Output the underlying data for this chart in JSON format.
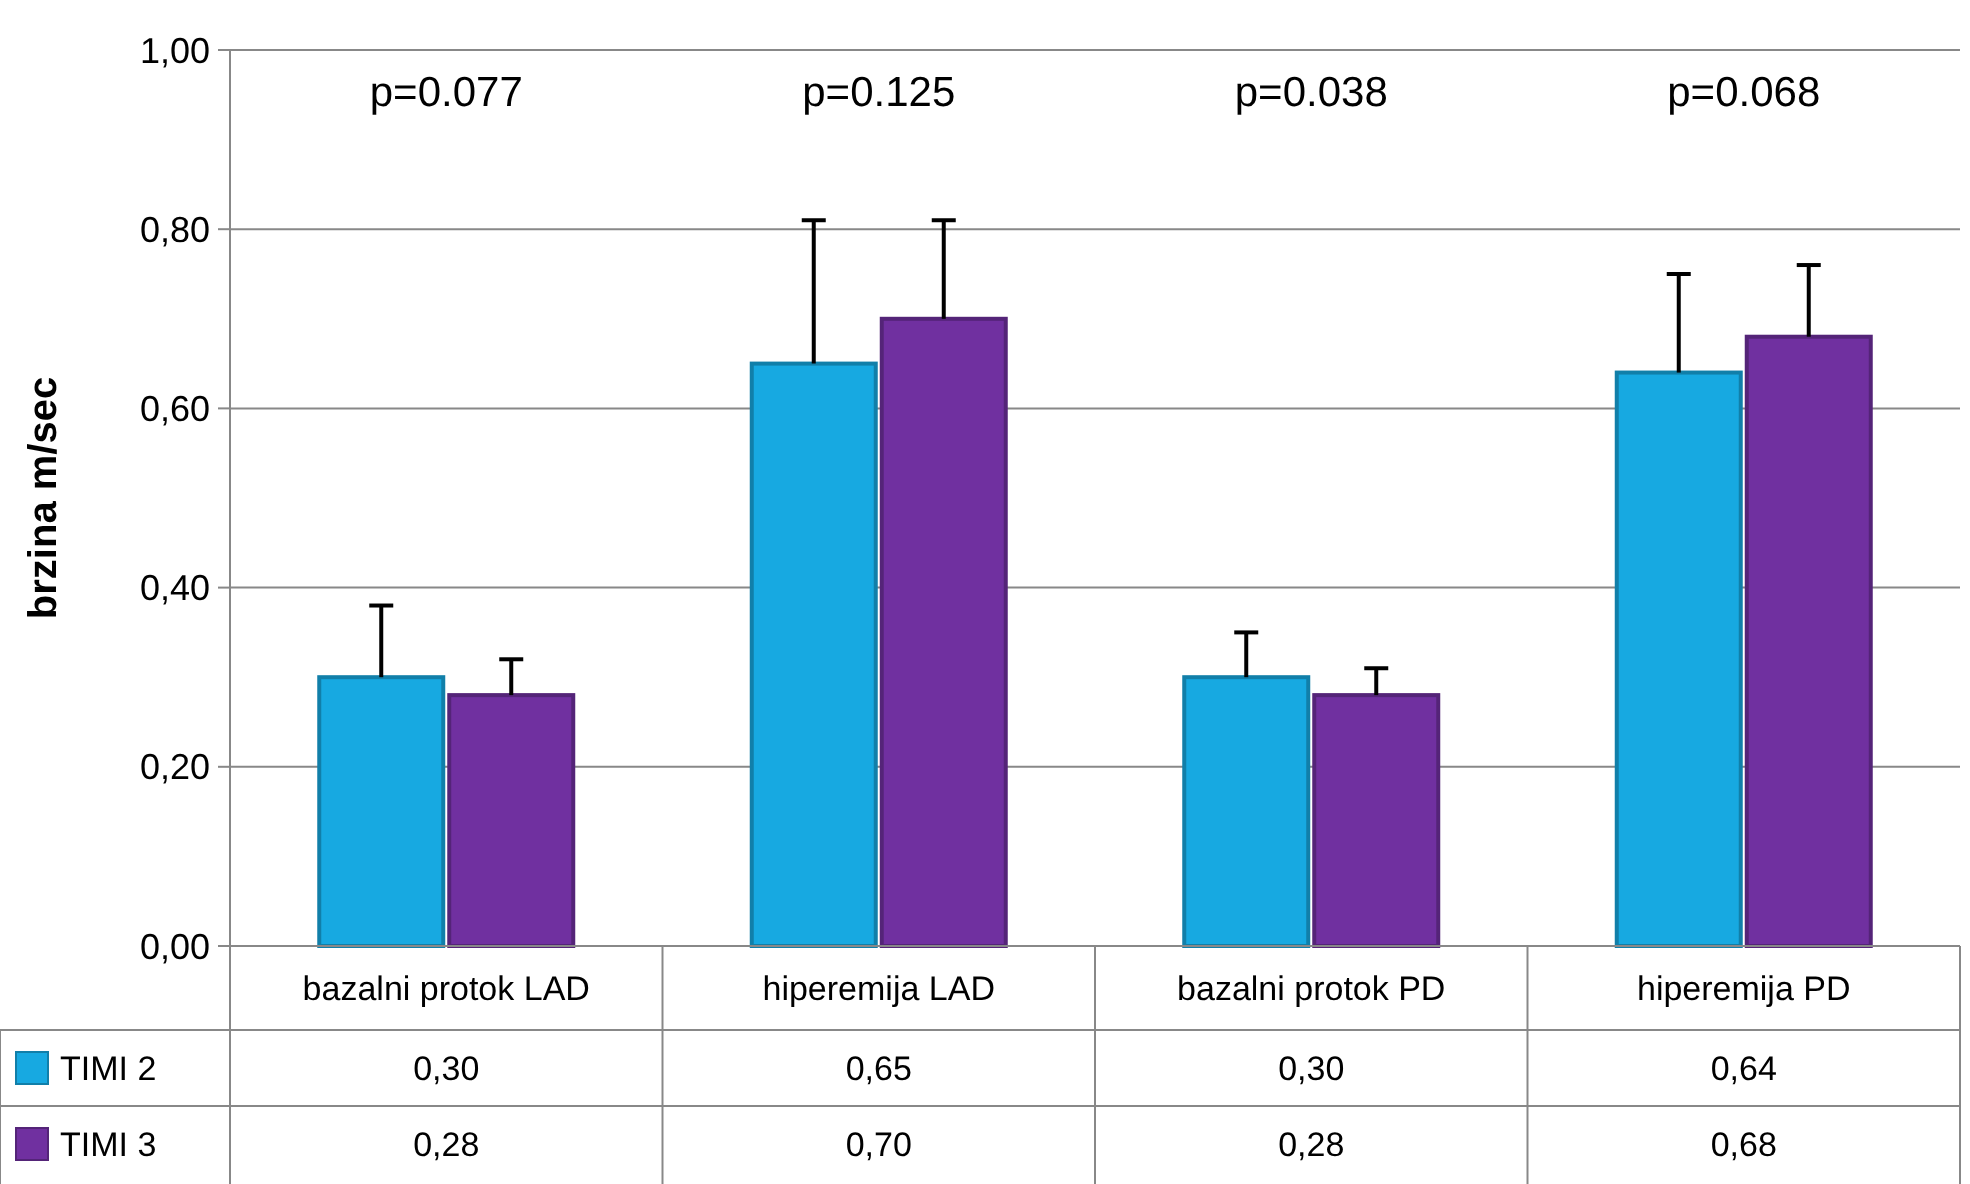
{
  "chart_data": {
    "type": "bar",
    "ylabel": "brzina m/sec",
    "categories": [
      "bazalni protok LAD",
      "hiperemija LAD",
      "bazalni protok PD",
      "hiperemija PD"
    ],
    "series": [
      {
        "name": "TIMI 2",
        "color": "#17a9e1",
        "values": [
          0.3,
          0.65,
          0.3,
          0.64
        ],
        "errors": [
          [
            0.3,
            0.38
          ],
          [
            0.65,
            0.81
          ],
          [
            0.3,
            0.35
          ],
          [
            0.64,
            0.75
          ]
        ],
        "value_labels": [
          "0,30",
          "0,65",
          "0,30",
          "0,64"
        ]
      },
      {
        "name": "TIMI 3",
        "color": "#7030a0",
        "values": [
          0.28,
          0.7,
          0.28,
          0.68
        ],
        "errors": [
          [
            0.28,
            0.32
          ],
          [
            0.7,
            0.81
          ],
          [
            0.28,
            0.31
          ],
          [
            0.68,
            0.76
          ]
        ],
        "value_labels": [
          "0,28",
          "0,70",
          "0,28",
          "0,68"
        ]
      }
    ],
    "ylim": [
      0,
      1
    ],
    "yticks": [
      {
        "value": 0,
        "label": "0,00"
      },
      {
        "value": 0.2,
        "label": "0,20"
      },
      {
        "value": 0.4,
        "label": "0,40"
      },
      {
        "value": 0.6,
        "label": "0,60"
      },
      {
        "value": 0.8,
        "label": "0,80"
      },
      {
        "value": 1,
        "label": "1,00"
      }
    ],
    "grid": "y",
    "legend": "bottom",
    "annotations": [
      "p=0.077",
      "p=0.125",
      "p=0.038",
      "p=0.068"
    ]
  }
}
